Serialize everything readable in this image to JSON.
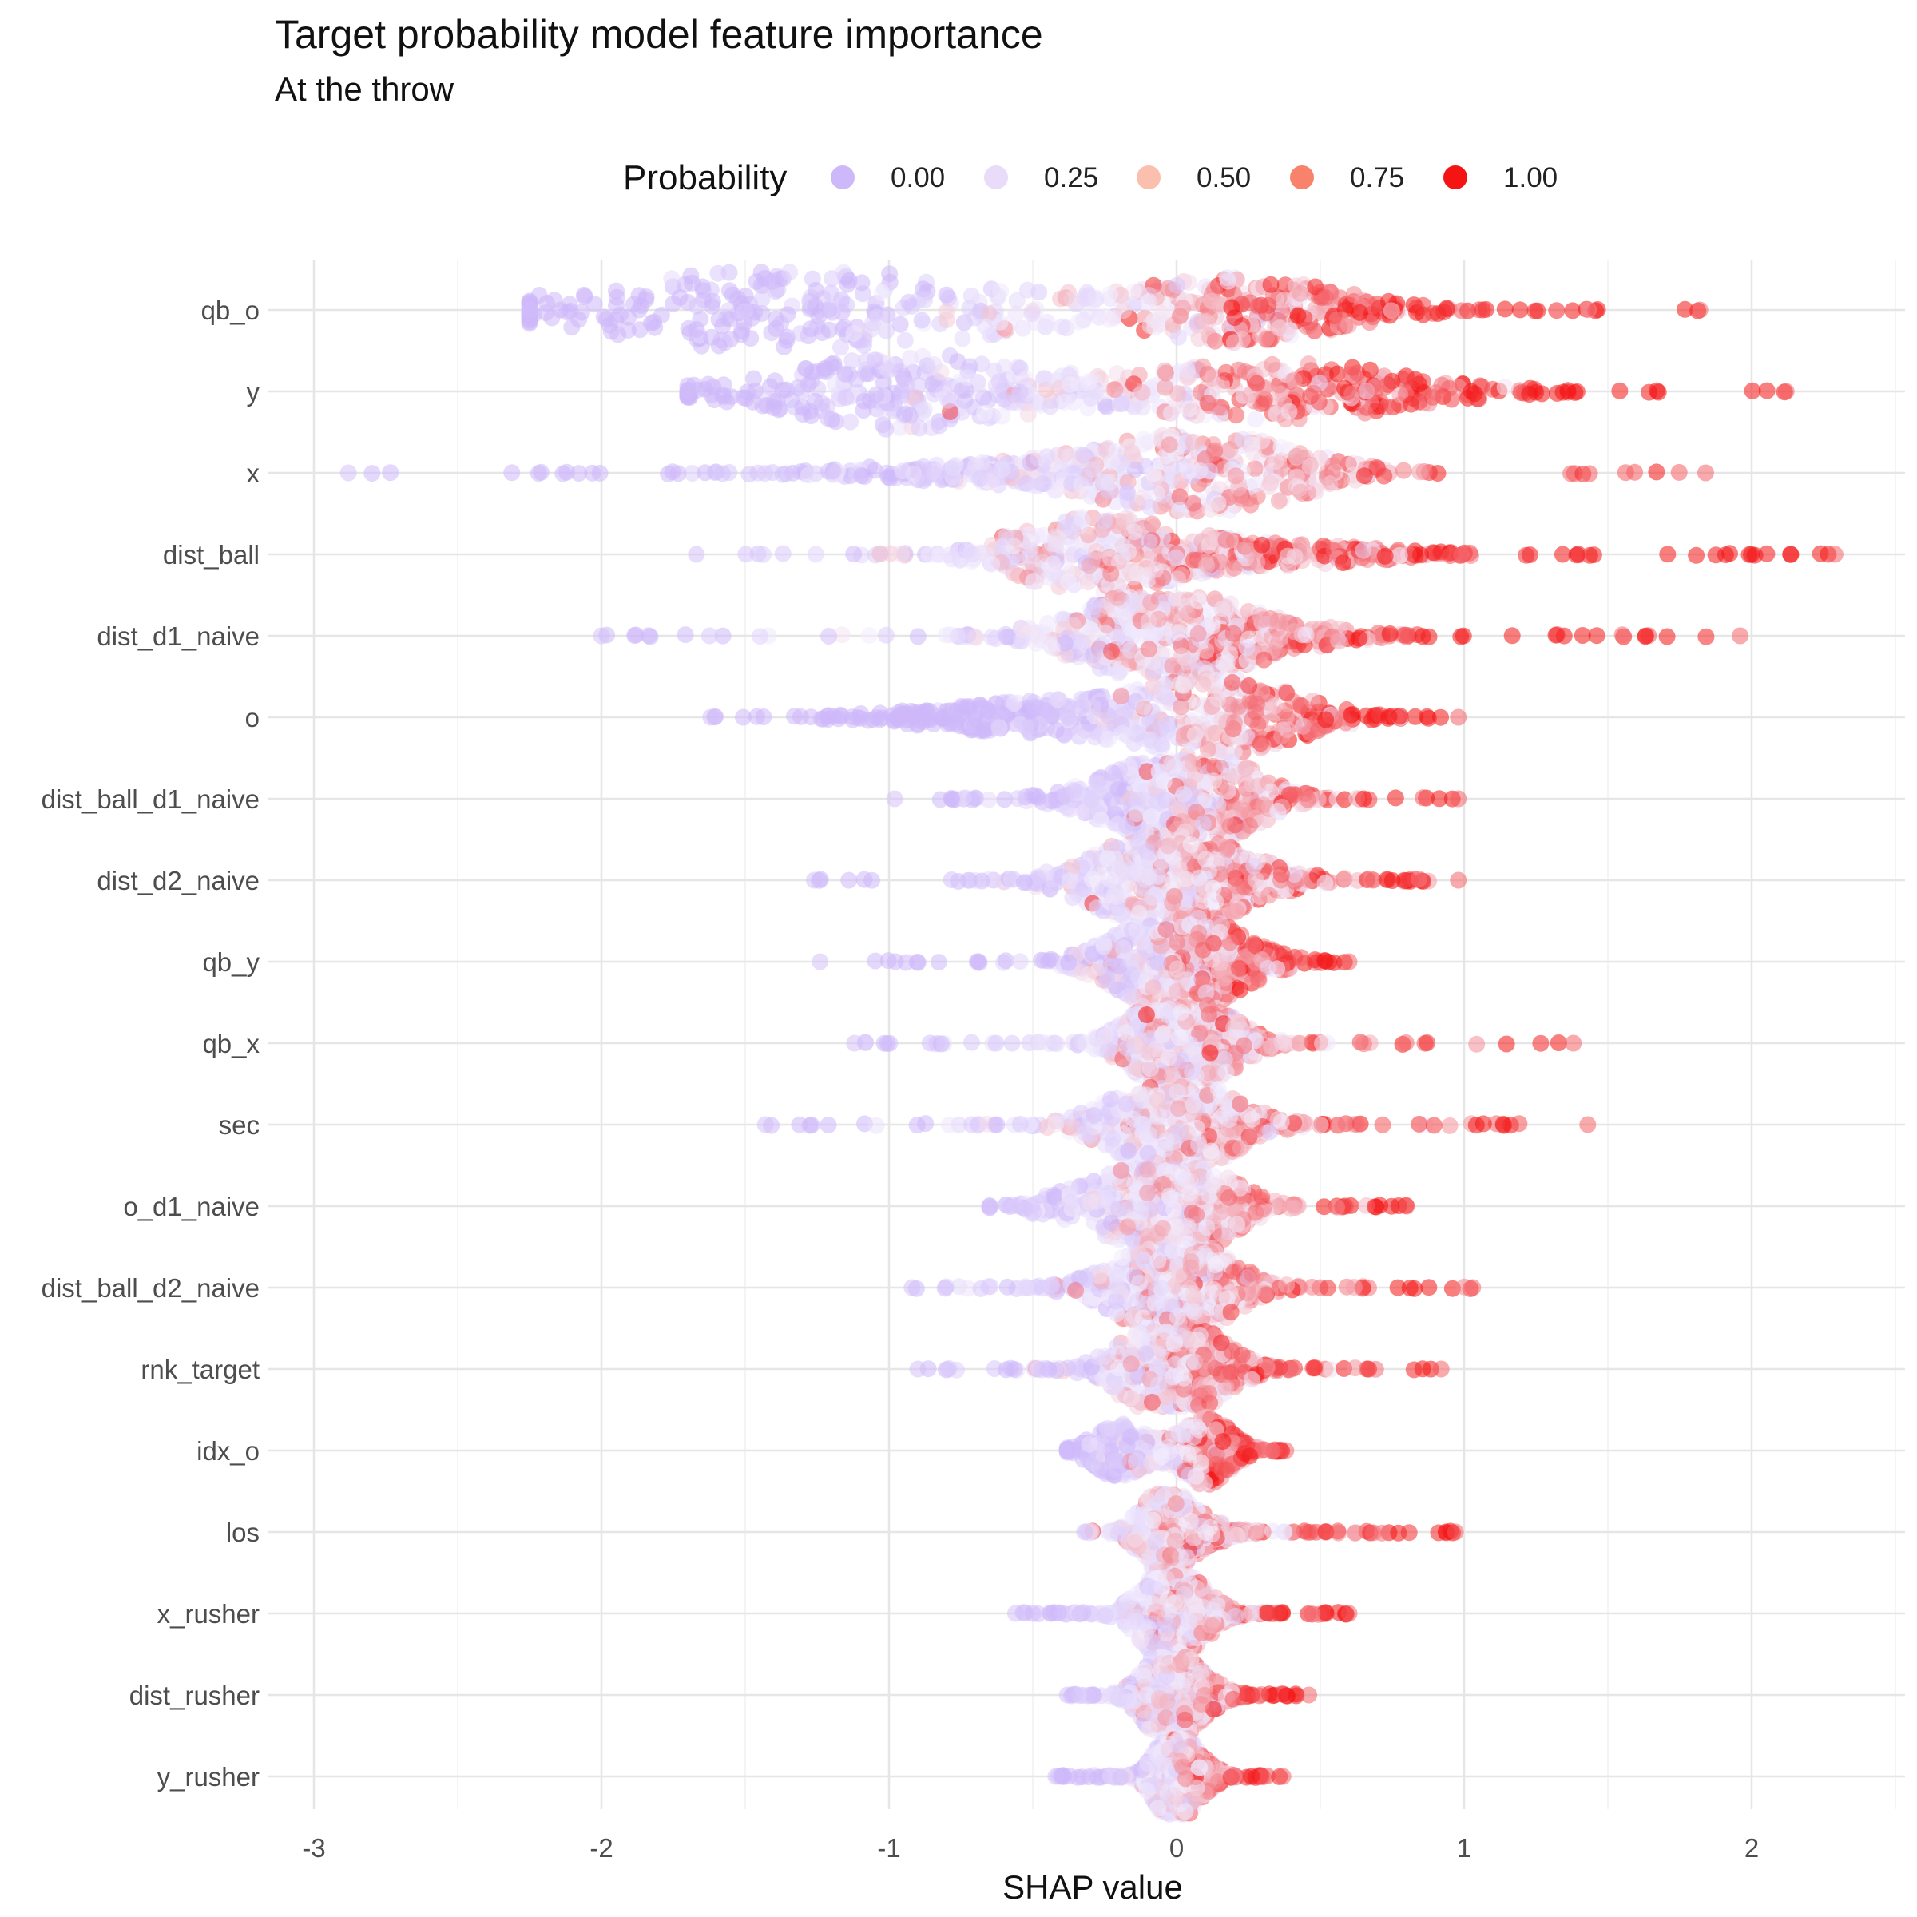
{
  "chart_data": {
    "type": "scatter",
    "subtype": "beeswarm-violin",
    "title": "Target probability model feature importance",
    "subtitle": "At the throw",
    "xlabel": "SHAP value",
    "ylabel": "",
    "xlim": [
      -3.15,
      2.55
    ],
    "x_ticks": [
      -3,
      -2,
      -1,
      0,
      1,
      2
    ],
    "x_tick_labels": [
      "-3",
      "-2",
      "-1",
      "0",
      "1",
      "2"
    ],
    "grid": true,
    "legend": {
      "title": "Probability",
      "position": "top",
      "entries": [
        {
          "label": "0.00",
          "value": 0.0,
          "color": "#cdb8fa"
        },
        {
          "label": "0.25",
          "value": 0.25,
          "color": "#e9dcfb"
        },
        {
          "label": "0.50",
          "value": 0.5,
          "color": "#fbbfad"
        },
        {
          "label": "0.75",
          "value": 0.75,
          "color": "#f8826b"
        },
        {
          "label": "1.00",
          "value": 1.0,
          "color": "#f41414"
        }
      ]
    },
    "color_scale": {
      "low": "#cdb8fa",
      "mid": "#f4eefd",
      "high": "#f41414"
    },
    "features": [
      {
        "name": "qb_o",
        "min": -2.25,
        "max": 1.82,
        "center": -0.2,
        "neg_peak": -1.3,
        "pos_peak": 0.25,
        "neg_width": 0.9,
        "pos_width": 0.45,
        "neg_height": 0.55,
        "pos_height": 0.4,
        "red_bias": 0.55
      },
      {
        "name": "y",
        "min": -1.7,
        "max": 2.12,
        "center": -0.1,
        "neg_peak": -0.95,
        "pos_peak": 0.35,
        "neg_width": 0.55,
        "pos_width": 0.6,
        "neg_height": 0.5,
        "pos_height": 0.38,
        "red_bias": 0.6
      },
      {
        "name": "x",
        "min": -2.88,
        "max": 1.84,
        "center": 0.0,
        "neg_peak": -0.6,
        "pos_peak": 0.1,
        "neg_width": 0.7,
        "pos_width": 0.45,
        "neg_height": 0.12,
        "pos_height": 0.48,
        "red_bias": 0.35
      },
      {
        "name": "dist_ball",
        "min": -1.67,
        "max": 2.29,
        "center": -0.3,
        "neg_peak": -0.3,
        "pos_peak": 0.3,
        "neg_width": 0.35,
        "pos_width": 0.5,
        "neg_height": 0.48,
        "pos_height": 0.15,
        "red_bias": 0.5
      },
      {
        "name": "dist_d1_naive",
        "min": -2.0,
        "max": 1.96,
        "center": -0.1,
        "neg_peak": -0.1,
        "pos_peak": 0.2,
        "neg_width": 0.35,
        "pos_width": 0.4,
        "neg_height": 0.48,
        "pos_height": 0.2,
        "red_bias": 0.45
      },
      {
        "name": "o",
        "min": -1.62,
        "max": 0.98,
        "center": 0.05,
        "neg_peak": -0.5,
        "pos_peak": 0.15,
        "neg_width": 0.5,
        "pos_width": 0.35,
        "neg_height": 0.2,
        "pos_height": 0.5,
        "red_bias": 0.45
      },
      {
        "name": "dist_ball_d1_naive",
        "min": -0.98,
        "max": 0.98,
        "center": 0.08,
        "neg_peak": -0.1,
        "pos_peak": 0.1,
        "neg_width": 0.3,
        "pos_width": 0.25,
        "neg_height": 0.3,
        "pos_height": 0.48,
        "red_bias": 0.4
      },
      {
        "name": "dist_d2_naive",
        "min": -1.26,
        "max": 0.98,
        "center": 0.0,
        "neg_peak": -0.1,
        "pos_peak": 0.1,
        "neg_width": 0.3,
        "pos_width": 0.3,
        "neg_height": 0.45,
        "pos_height": 0.3,
        "red_bias": 0.35
      },
      {
        "name": "qb_y",
        "min": -1.24,
        "max": 0.6,
        "center": 0.0,
        "neg_peak": -0.05,
        "pos_peak": 0.1,
        "neg_width": 0.25,
        "pos_width": 0.25,
        "neg_height": 0.45,
        "pos_height": 0.3,
        "red_bias": 0.35
      },
      {
        "name": "qb_x",
        "min": -1.12,
        "max": 1.38,
        "center": 0.0,
        "neg_peak": 0.0,
        "pos_peak": 0.05,
        "neg_width": 0.2,
        "pos_width": 0.2,
        "neg_height": 0.48,
        "pos_height": 0.3,
        "red_bias": 0.4
      },
      {
        "name": "sec",
        "min": -1.43,
        "max": 1.43,
        "center": 0.0,
        "neg_peak": -0.05,
        "pos_peak": 0.05,
        "neg_width": 0.25,
        "pos_width": 0.25,
        "neg_height": 0.45,
        "pos_height": 0.28,
        "red_bias": 0.4
      },
      {
        "name": "o_d1_naive",
        "min": -0.65,
        "max": 0.8,
        "center": 0.0,
        "neg_peak": -0.15,
        "pos_peak": 0.05,
        "neg_width": 0.3,
        "pos_width": 0.2,
        "neg_height": 0.4,
        "pos_height": 0.45,
        "red_bias": 0.35
      },
      {
        "name": "dist_ball_d2_naive",
        "min": -0.92,
        "max": 1.03,
        "center": 0.0,
        "neg_peak": -0.05,
        "pos_peak": 0.05,
        "neg_width": 0.25,
        "pos_width": 0.2,
        "neg_height": 0.45,
        "pos_height": 0.3,
        "red_bias": 0.35
      },
      {
        "name": "rnk_target",
        "min": -0.9,
        "max": 0.92,
        "center": -0.05,
        "neg_peak": -0.05,
        "pos_peak": 0.05,
        "neg_width": 0.2,
        "pos_width": 0.2,
        "neg_height": 0.48,
        "pos_height": 0.3,
        "red_bias": 0.4
      },
      {
        "name": "idx_o",
        "min": -0.38,
        "max": 0.38,
        "center": 0.0,
        "neg_peak": -0.2,
        "pos_peak": 0.1,
        "neg_width": 0.12,
        "pos_width": 0.12,
        "neg_height": 0.35,
        "pos_height": 0.45,
        "red_bias": 0.35
      },
      {
        "name": "los",
        "min": -0.32,
        "max": 0.97,
        "center": -0.05,
        "neg_peak": -0.05,
        "pos_peak": 0.05,
        "neg_width": 0.1,
        "pos_width": 0.15,
        "neg_height": 0.48,
        "pos_height": 0.2,
        "red_bias": 0.35
      },
      {
        "name": "x_rusher",
        "min": -0.56,
        "max": 0.6,
        "center": 0.0,
        "neg_peak": -0.05,
        "pos_peak": 0.05,
        "neg_width": 0.12,
        "pos_width": 0.12,
        "neg_height": 0.48,
        "pos_height": 0.3,
        "red_bias": 0.35
      },
      {
        "name": "dist_rusher",
        "min": -0.38,
        "max": 0.46,
        "center": 0.0,
        "neg_peak": -0.05,
        "pos_peak": 0.05,
        "neg_width": 0.1,
        "pos_width": 0.12,
        "neg_height": 0.48,
        "pos_height": 0.3,
        "red_bias": 0.35
      },
      {
        "name": "y_rusher",
        "min": -0.42,
        "max": 0.37,
        "center": 0.0,
        "neg_peak": -0.02,
        "pos_peak": 0.05,
        "neg_width": 0.08,
        "pos_width": 0.1,
        "neg_height": 0.48,
        "pos_height": 0.25,
        "red_bias": 0.35
      }
    ]
  }
}
